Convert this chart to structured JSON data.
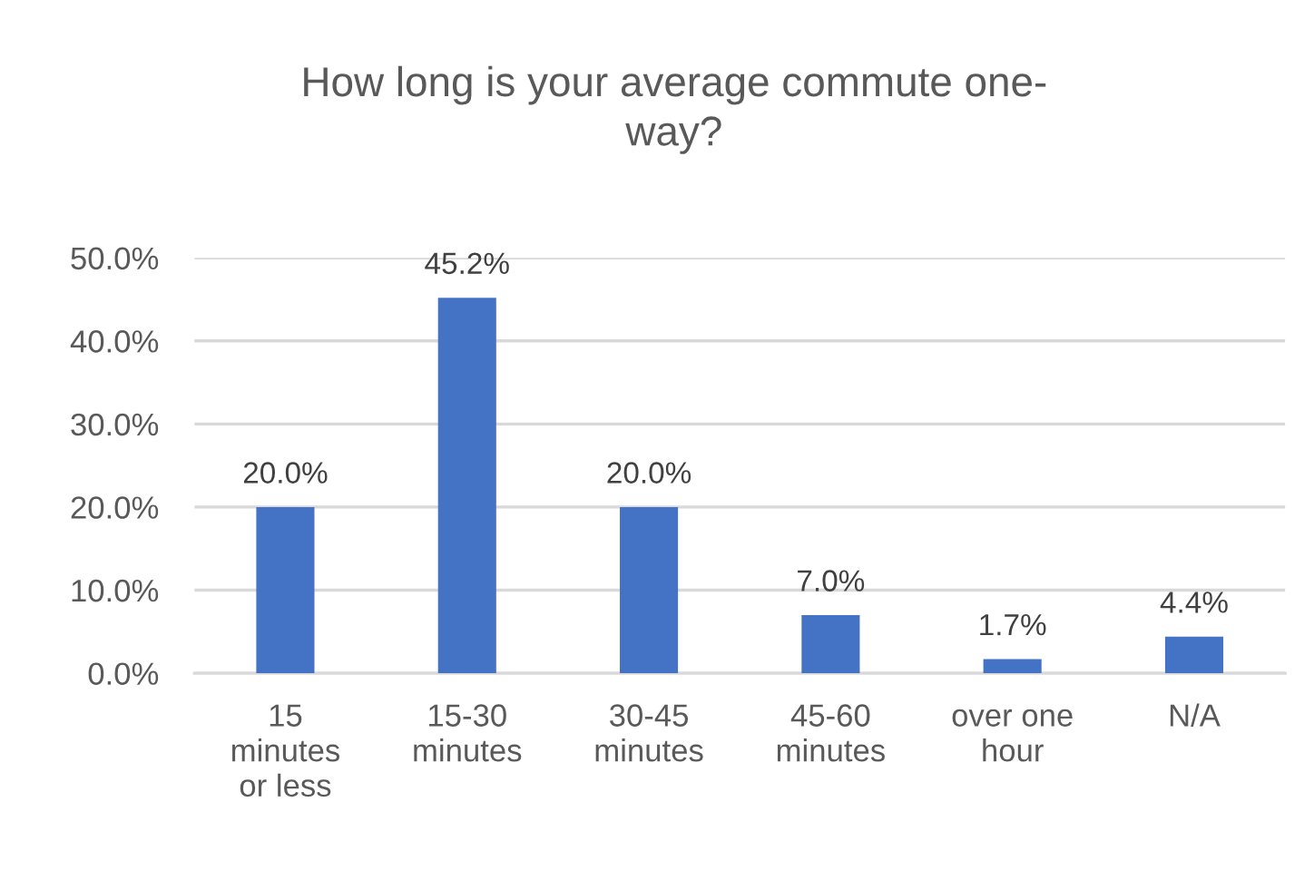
{
  "chart_data": {
    "type": "bar",
    "title": "How long is your average commute one-\nway?",
    "categories": [
      "15\nminutes\nor less",
      "15-30\nminutes",
      "30-45\nminutes",
      "45-60\nminutes",
      "over one\nhour",
      "N/A"
    ],
    "values": [
      20.0,
      45.2,
      20.0,
      7.0,
      1.7,
      4.4
    ],
    "value_labels": [
      "20.0%",
      "45.2%",
      "20.0%",
      "7.0%",
      "1.7%",
      "4.4%"
    ],
    "color": "#4472c4",
    "ylim": [
      0,
      50
    ],
    "yticks": [
      {
        "value": 0,
        "label": "0.0%"
      },
      {
        "value": 10,
        "label": "10.0%"
      },
      {
        "value": 20,
        "label": "20.0%"
      },
      {
        "value": 30,
        "label": "30.0%"
      },
      {
        "value": 40,
        "label": "40.0%"
      },
      {
        "value": 50,
        "label": "50.0%"
      }
    ],
    "grid": "y"
  }
}
